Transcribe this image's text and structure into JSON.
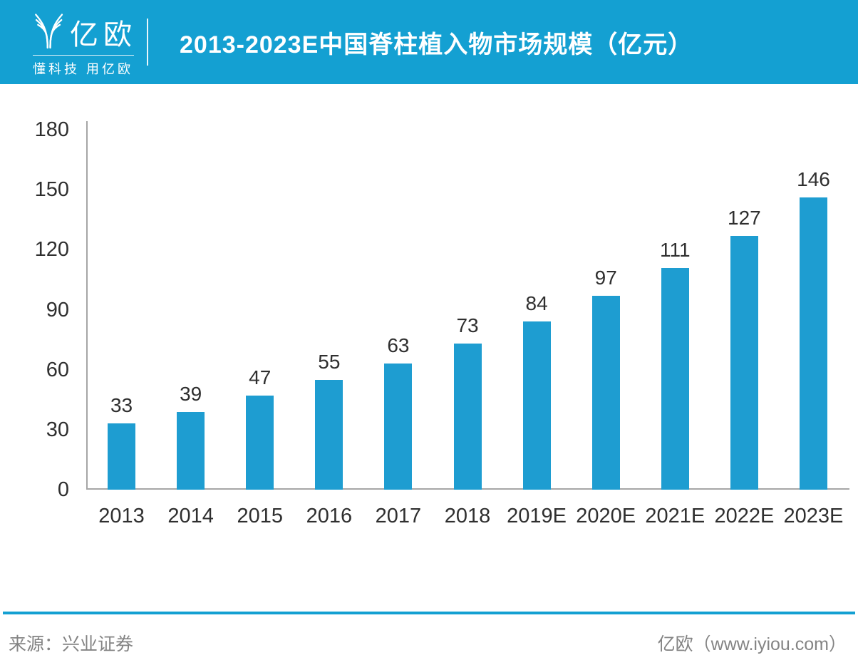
{
  "header": {
    "logo_text": "亿欧",
    "logo_tagline": "懂科技 用亿欧",
    "title": "2013-2023E中国脊柱植入物市场规模（亿元）"
  },
  "chart_data": {
    "type": "bar",
    "title": "2013-2023E中国脊柱植入物市场规模（亿元）",
    "categories": [
      "2013",
      "2014",
      "2015",
      "2016",
      "2017",
      "2018",
      "2019E",
      "2020E",
      "2021E",
      "2022E",
      "2023E"
    ],
    "values": [
      33,
      39,
      47,
      55,
      63,
      73,
      84,
      97,
      111,
      127,
      146
    ],
    "unit": "亿元",
    "ylim": [
      0,
      180
    ],
    "yticks": [
      0,
      30,
      60,
      90,
      120,
      150,
      180
    ],
    "grid": false,
    "legend": "none",
    "bar_color": "#1E9DD1",
    "axis_color": "#A6A6A6",
    "label_color": "#2F2F2F"
  },
  "footer": {
    "source": "来源：兴业证券",
    "brand": "亿欧（www.iyiou.com）"
  },
  "colors": {
    "header_bg": "#14A0D2",
    "separator": "#14A0D2",
    "footer_text": "#848484"
  }
}
